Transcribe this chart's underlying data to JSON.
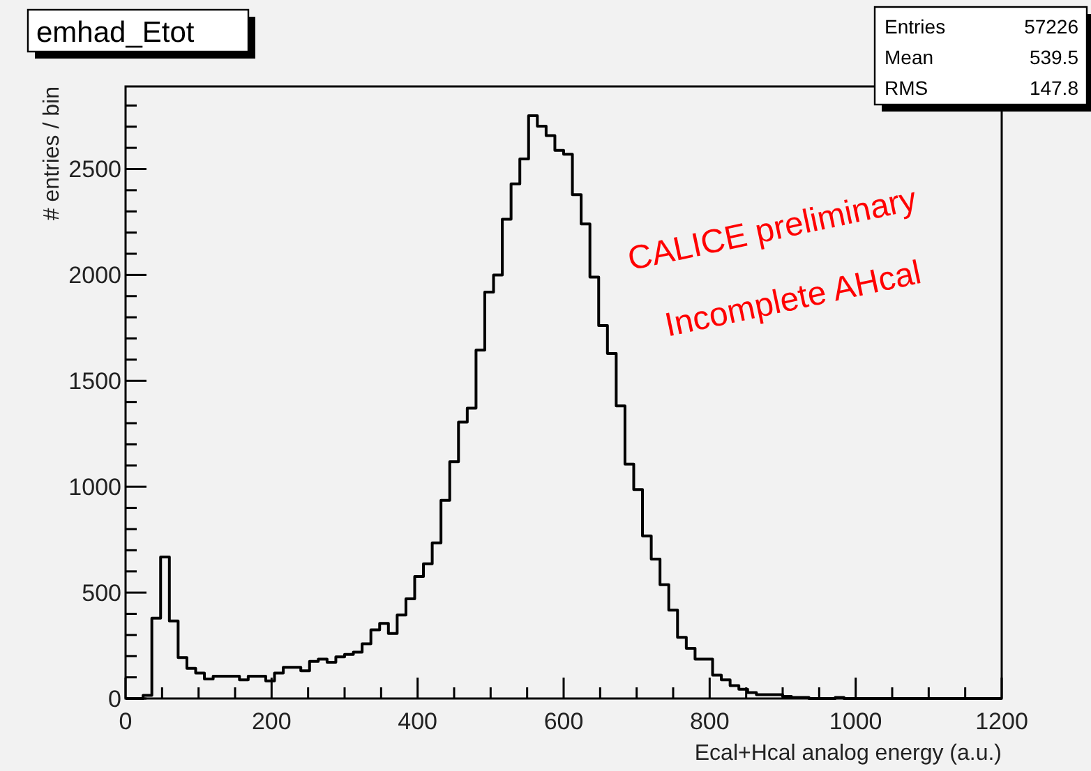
{
  "chart_data": {
    "type": "histogram",
    "title": "emhad_Etot",
    "xlabel": "Ecal+Hcal analog energy (a.u.)",
    "ylabel": "# entries / bin",
    "annotations": [
      "Entries",
      "57226",
      "Mean",
      "539.5",
      "RMS",
      "147.8",
      "CALICE preliminary",
      "Incomplete AHcal"
    ],
    "bins": [
      0,
      12,
      24,
      36,
      48,
      60,
      72,
      84,
      96,
      108,
      120,
      132,
      144,
      156,
      168,
      180,
      192,
      204,
      216,
      228,
      240,
      252,
      264,
      276,
      288,
      300,
      312,
      324,
      336,
      348,
      360,
      372,
      384,
      396,
      408,
      420,
      432,
      444,
      456,
      468,
      480,
      492,
      504,
      516,
      528,
      540,
      552,
      564,
      576,
      588,
      600,
      612,
      624,
      636,
      648,
      660,
      672,
      684,
      696,
      708,
      720,
      732,
      744,
      756,
      768,
      780,
      792,
      804,
      816,
      828,
      840,
      852,
      864,
      876,
      888,
      900,
      912,
      924,
      936,
      948,
      960,
      972,
      984,
      996,
      1008,
      1020,
      1032,
      1044,
      1056,
      1068,
      1080,
      1092,
      1104,
      1116,
      1128,
      1140,
      1152,
      1164,
      1176,
      1188,
      1200
    ],
    "values": [
      0,
      0,
      15,
      379,
      668,
      366,
      193,
      142,
      120,
      92,
      105,
      105,
      105,
      88,
      105,
      105,
      83,
      120,
      147,
      147,
      131,
      175,
      186,
      171,
      197,
      208,
      219,
      258,
      324,
      355,
      307,
      394,
      471,
      576,
      636,
      735,
      936,
      1118,
      1305,
      1371,
      1645,
      1919,
      2000,
      2263,
      2430,
      2548,
      2752,
      2702,
      2658,
      2588,
      2570,
      2379,
      2241,
      1990,
      1761,
      1629,
      1382,
      1107,
      987,
      768,
      658,
      537,
      417,
      289,
      237,
      186,
      186,
      110,
      88,
      61,
      44,
      28,
      18,
      18,
      18,
      10,
      5,
      5,
      0,
      0,
      0,
      5,
      0,
      0,
      0,
      0,
      0,
      0,
      0,
      0,
      0,
      0,
      0,
      0,
      0,
      0,
      0,
      0,
      0,
      0
    ],
    "color": "#000000",
    "xlim": [
      0,
      1200
    ],
    "xticks": [
      0,
      {
        "value": 50,
        "label": null
      },
      {
        "value": 100,
        "label": null
      },
      {
        "value": 150,
        "label": null
      },
      200,
      {
        "value": 250,
        "label": null
      },
      {
        "value": 300,
        "label": null
      },
      {
        "value": 350,
        "label": null
      },
      400,
      {
        "value": 450,
        "label": null
      },
      {
        "value": 500,
        "label": null
      },
      {
        "value": 550,
        "label": null
      },
      600,
      {
        "value": 650,
        "label": null
      },
      {
        "value": 700,
        "label": null
      },
      {
        "value": 750,
        "label": null
      },
      800,
      {
        "value": 850,
        "label": null
      },
      {
        "value": 900,
        "label": null
      },
      {
        "value": 950,
        "label": null
      },
      1000,
      {
        "value": 1050,
        "label": null
      },
      {
        "value": 1100,
        "label": null
      },
      {
        "value": 1150,
        "label": null
      },
      1200
    ],
    "ylim": [
      0,
      2890
    ],
    "yticks": [
      0,
      {
        "value": 100,
        "label": null
      },
      {
        "value": 200,
        "label": null
      },
      {
        "value": 300,
        "label": null
      },
      {
        "value": 400,
        "label": null
      },
      500,
      {
        "value": 600,
        "label": null
      },
      {
        "value": 700,
        "label": null
      },
      {
        "value": 800,
        "label": null
      },
      {
        "value": 900,
        "label": null
      },
      1000,
      {
        "value": 1100,
        "label": null
      },
      {
        "value": 1200,
        "label": null
      },
      {
        "value": 1300,
        "label": null
      },
      {
        "value": 1400,
        "label": null
      },
      1500,
      {
        "value": 1600,
        "label": null
      },
      {
        "value": 1700,
        "label": null
      },
      {
        "value": 1800,
        "label": null
      },
      {
        "value": 1900,
        "label": null
      },
      2000,
      {
        "value": 2100,
        "label": null
      },
      {
        "value": 2200,
        "label": null
      },
      {
        "value": 2300,
        "label": null
      },
      {
        "value": 2400,
        "label": null
      },
      2500,
      {
        "value": 2600,
        "label": null
      },
      {
        "value": 2700,
        "label": null
      },
      {
        "value": 2800,
        "label": null
      }
    ]
  }
}
